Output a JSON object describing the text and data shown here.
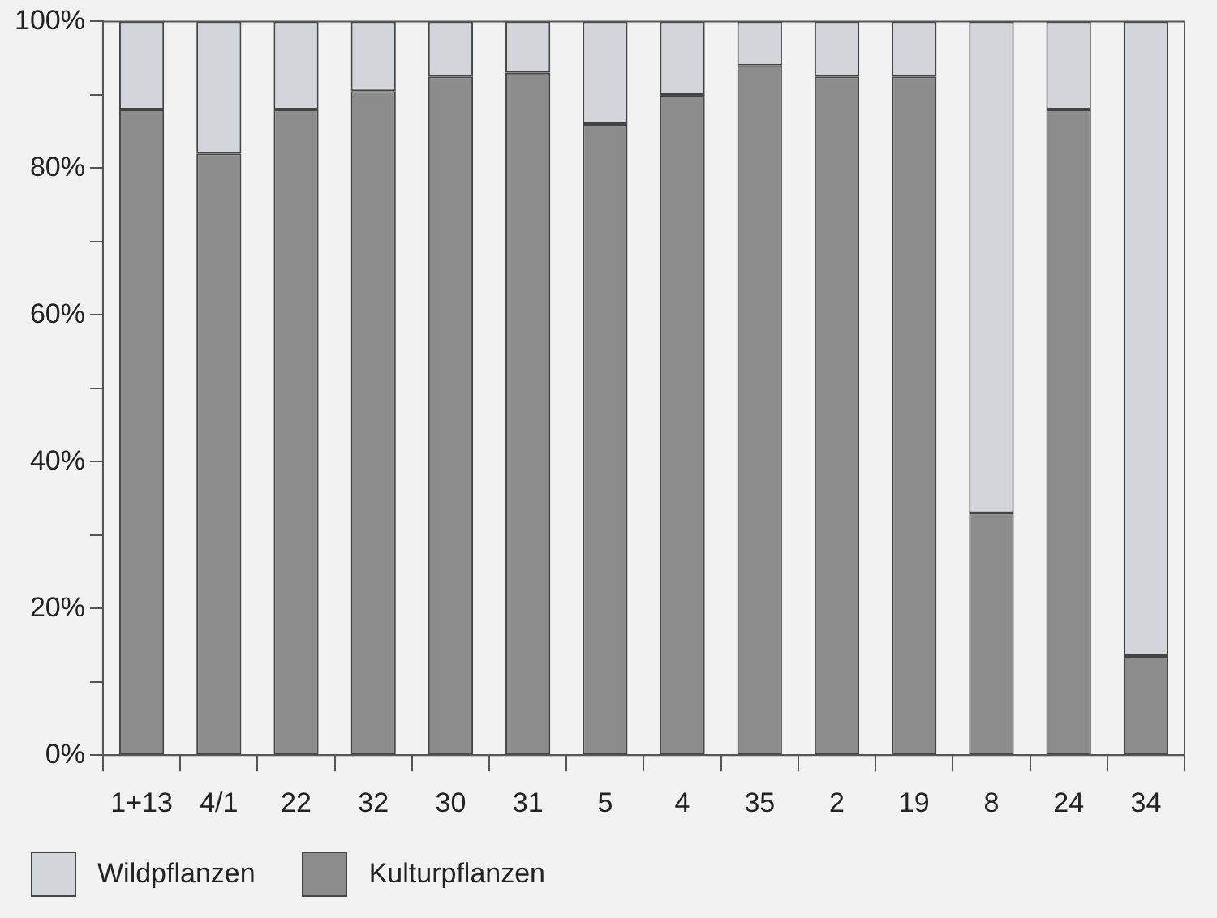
{
  "chart_data": {
    "type": "bar",
    "stacked": true,
    "categories": [
      "1+13",
      "4/1",
      "22",
      "32",
      "30",
      "31",
      "5",
      "4",
      "35",
      "2",
      "19",
      "8",
      "24",
      "34"
    ],
    "series": [
      {
        "name": "Kulturpflanzen",
        "color": "#8c8c8c",
        "values": [
          88,
          82,
          88,
          90.5,
          92.5,
          93,
          86,
          90,
          94,
          92.5,
          92.5,
          33,
          88,
          13.5
        ]
      },
      {
        "name": "Wildpflanzen",
        "color": "#d3d5da",
        "values": [
          12,
          18,
          12,
          9.5,
          7.5,
          7,
          14,
          10,
          6,
          7.5,
          7.5,
          67,
          12,
          86.5
        ]
      }
    ],
    "ylim": [
      0,
      100
    ],
    "yticks": [
      {
        "value": 0,
        "label": "0%"
      },
      {
        "value": 10,
        "label": null
      },
      {
        "value": 20,
        "label": "20%"
      },
      {
        "value": 30,
        "label": null
      },
      {
        "value": 40,
        "label": "40%"
      },
      {
        "value": 50,
        "label": null
      },
      {
        "value": 60,
        "label": "60%"
      },
      {
        "value": 70,
        "label": null
      },
      {
        "value": 80,
        "label": "80%"
      },
      {
        "value": 90,
        "label": null
      },
      {
        "value": 100,
        "label": "100%"
      }
    ],
    "grid": false,
    "legend": "bottom left"
  }
}
